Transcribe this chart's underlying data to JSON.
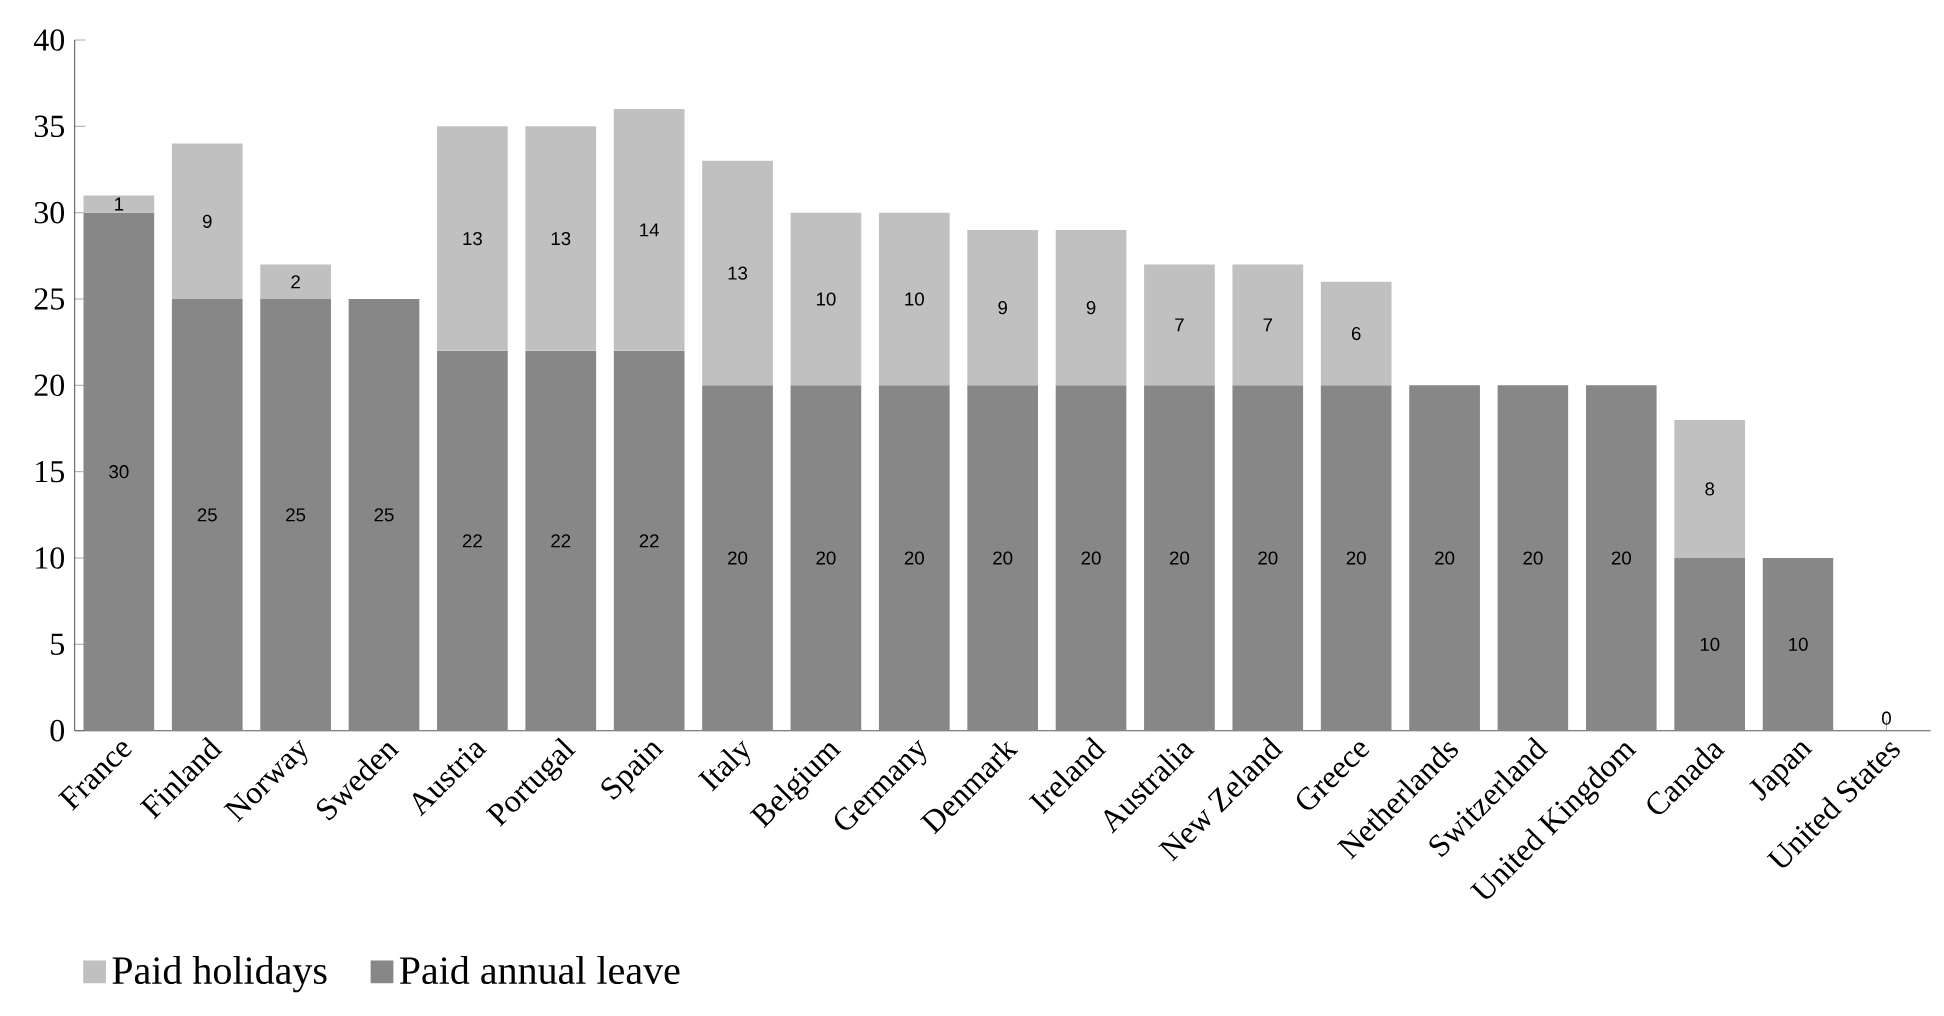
{
  "chart_data": {
    "type": "bar",
    "stacked": true,
    "categories": [
      "France",
      "Finland",
      "Norway",
      "Sweden",
      "Austria",
      "Portugal",
      "Spain",
      "Italy",
      "Belgium",
      "Germany",
      "Denmark",
      "Ireland",
      "Australia",
      "New Zeland",
      "Greece",
      "Netherlands",
      "Switzerland",
      "United Kingdom",
      "Canada",
      "Japan",
      "United States"
    ],
    "series": [
      {
        "name": "Paid annual leave",
        "color": "#878787",
        "values": [
          30,
          25,
          25,
          25,
          22,
          22,
          22,
          20,
          20,
          20,
          20,
          20,
          20,
          20,
          20,
          20,
          20,
          20,
          10,
          10,
          0
        ]
      },
      {
        "name": "Paid holidays",
        "color": "#c0c0c0",
        "values": [
          1,
          9,
          2,
          null,
          13,
          13,
          14,
          13,
          10,
          10,
          9,
          9,
          7,
          7,
          6,
          null,
          null,
          null,
          8,
          null,
          null
        ]
      }
    ],
    "ylim": [
      0,
      40
    ],
    "yticks": [
      0,
      5,
      10,
      15,
      20,
      25,
      30,
      35,
      40
    ],
    "data_labels": true,
    "legend": "bottom"
  }
}
